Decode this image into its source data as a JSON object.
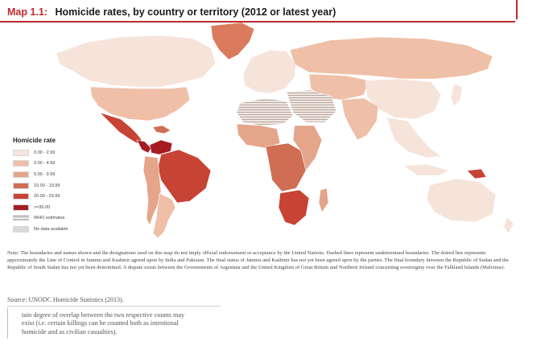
{
  "title": {
    "number": "Map 1.1:",
    "text": "Homicide rates, by country or territory (2012 or latest year)"
  },
  "legend": {
    "title": "Homicide rate",
    "items": [
      {
        "label": "0.00 - 2.99",
        "color": "#f6e3da"
      },
      {
        "label": "3.00 - 4.99",
        "color": "#efbfa8"
      },
      {
        "label": "5.00 - 9.99",
        "color": "#e4a58a"
      },
      {
        "label": "10.00 - 19.99",
        "color": "#cf6e55"
      },
      {
        "label": "20.00 - 29.99",
        "color": "#c74334"
      },
      {
        "label": ">=30.00",
        "color": "#a51d23"
      },
      {
        "label": "WHO estimates",
        "pattern": "hatch"
      },
      {
        "label": "No data available",
        "color": "#d9d9d9"
      }
    ]
  },
  "note": "Note: The boundaries and names shown and the designations used on this map do not imply official endorsement or acceptance by the United Nations. Dashed lines represent undetermined boundaries. The dotted line represents approximately the Line of Control in Jammu and Kashmir agreed upon by India and Pakistan. The final status of Jammu and Kashmir has not yet been agreed upon by the parties. The final boundary between the Republic of Sudan and the Republic of South Sudan has not yet been determined. A dispute exists between the Governments of Argentina and the United Kingdom of Great Britain and Northern Ireland concerning sovereignty over the Falkland Islands (Malvinas).",
  "source": "Source: UNODC Homicide Statistics (2013).",
  "body_lines": [
    "tain degree of overlap between the two respective counts may",
    "exist (i.e. certain killings can be counted both as intentional",
    "homicide and as civilian casualties)."
  ]
}
